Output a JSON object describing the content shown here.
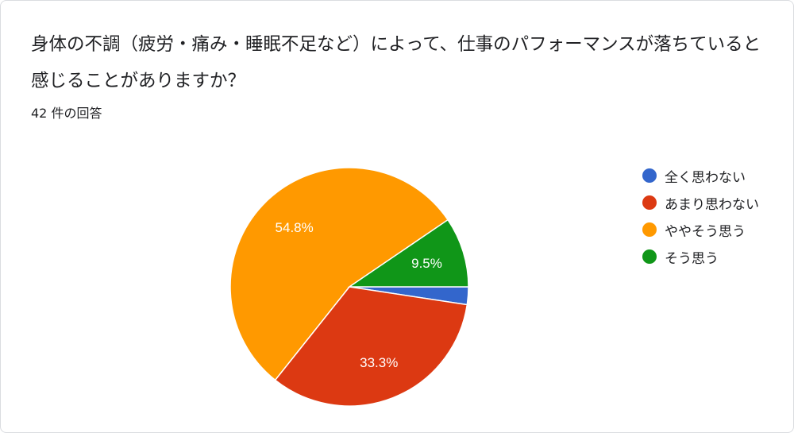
{
  "question": "身体の不調（疲労・痛み・睡眠不足など）によって、仕事のパフォーマンスが落ちていると感じることがありますか？",
  "response_count": "42 件の回答",
  "chart_data": {
    "type": "pie",
    "categories": [
      "全く思わない",
      "あまり思わない",
      "ややそう思う",
      "そう思う"
    ],
    "values": [
      2.4,
      33.3,
      54.8,
      9.5
    ],
    "data_labels": [
      "",
      "33.3%",
      "54.8%",
      "9.5%"
    ],
    "colors": [
      "#3366cc",
      "#dc3912",
      "#ff9900",
      "#109618"
    ],
    "legend_position": "right",
    "start_angle_deg": 90,
    "direction": "clockwise"
  }
}
